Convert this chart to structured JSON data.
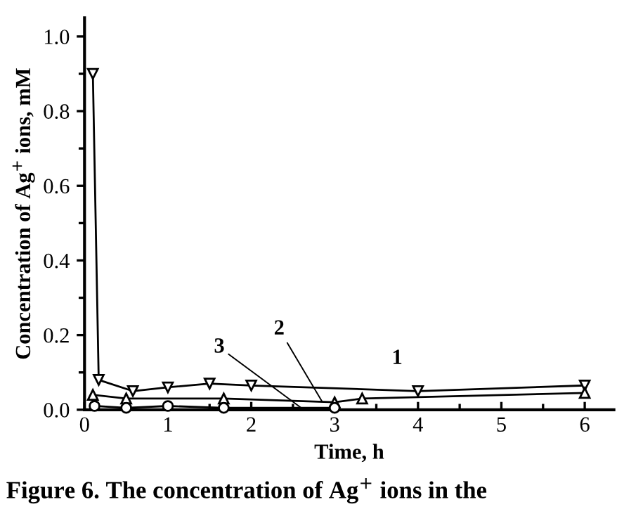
{
  "chart_data": {
    "type": "line",
    "xlabel": "Time, h",
    "ylabel": "Concentration of Ag$^{+}$ ions, mM",
    "xlim": [
      0,
      6.35
    ],
    "ylim": [
      0,
      1.05
    ],
    "xticks": [
      0,
      1,
      2,
      3,
      4,
      5,
      6
    ],
    "yticks": [
      {
        "value": 0,
        "label": "0.0"
      },
      {
        "value": 0.2,
        "label": "0.2"
      },
      {
        "value": 0.4,
        "label": "0.4"
      },
      {
        "value": 0.6,
        "label": "0.6"
      },
      {
        "value": 0.8,
        "label": "0.8"
      },
      {
        "value": 1,
        "label": "1.0"
      }
    ],
    "grid": false,
    "legend": false,
    "line_style": "solid",
    "series": [
      {
        "color": "#000000",
        "marker": "triangle",
        "x": [
          0.1,
          0.17,
          0.58,
          1,
          1.5,
          2,
          4,
          6
        ],
        "values": [
          0.9,
          0.08,
          0.05,
          0.06,
          0.07,
          0.065,
          0.05,
          0.065
        ]
      },
      {
        "color": "#000000",
        "marker": "triangle",
        "x": [
          0.1,
          0.5,
          1.67,
          3,
          3.33,
          6
        ],
        "values": [
          0.04,
          0.03,
          0.03,
          0.02,
          0.03,
          0.045
        ]
      },
      {
        "color": "#000000",
        "marker": "circle",
        "x": [
          0.12,
          0.5,
          1,
          1.67,
          3
        ],
        "values": [
          0.01,
          0.005,
          0.01,
          0.005,
          0.005
        ]
      }
    ],
    "annotations": [
      {
        "text": "1",
        "x": 3.75,
        "y": 0.058
      },
      {
        "text": "2",
        "x": 2.85,
        "y": 0.022
      },
      {
        "text": "3",
        "x": 2.6,
        "y": 0.005
      },
      "Figure 6. The concentration of Ag$^{+}$ ions in the"
    ]
  }
}
